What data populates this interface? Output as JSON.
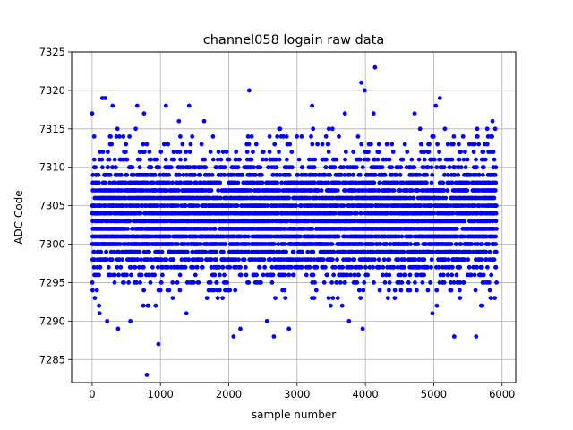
{
  "chart_data": {
    "type": "scatter",
    "title": "channel058 logain raw data",
    "xlabel": "sample number",
    "ylabel": "ADC Code",
    "xlim": [
      -300,
      6200
    ],
    "ylim": [
      7282,
      7325
    ],
    "x_ticks": [
      0,
      1000,
      2000,
      3000,
      4000,
      5000,
      6000
    ],
    "y_ticks": [
      7285,
      7290,
      7295,
      7300,
      7305,
      7310,
      7315,
      7320,
      7325
    ],
    "x_tick_labels": [
      "0",
      "1000",
      "2000",
      "3000",
      "4000",
      "5000",
      "6000"
    ],
    "y_tick_labels": [
      "7285",
      "7290",
      "7295",
      "7300",
      "7305",
      "7310",
      "7315",
      "7320",
      "7325"
    ],
    "grid": true,
    "marker_color": "#0000ff",
    "n_samples": 5920,
    "dense_band": [
      7293,
      7314
    ],
    "outliers": [
      {
        "x": 0,
        "y": 7317
      },
      {
        "x": 40,
        "y": 7293
      },
      {
        "x": 110,
        "y": 7291
      },
      {
        "x": 150,
        "y": 7319
      },
      {
        "x": 190,
        "y": 7319
      },
      {
        "x": 220,
        "y": 7290
      },
      {
        "x": 300,
        "y": 7318
      },
      {
        "x": 380,
        "y": 7289
      },
      {
        "x": 560,
        "y": 7290
      },
      {
        "x": 660,
        "y": 7318
      },
      {
        "x": 760,
        "y": 7317
      },
      {
        "x": 800,
        "y": 7283
      },
      {
        "x": 930,
        "y": 7292
      },
      {
        "x": 970,
        "y": 7287
      },
      {
        "x": 1080,
        "y": 7318
      },
      {
        "x": 1270,
        "y": 7316
      },
      {
        "x": 1380,
        "y": 7291
      },
      {
        "x": 1420,
        "y": 7318
      },
      {
        "x": 1640,
        "y": 7316
      },
      {
        "x": 2070,
        "y": 7288
      },
      {
        "x": 2170,
        "y": 7289
      },
      {
        "x": 2300,
        "y": 7320
      },
      {
        "x": 2560,
        "y": 7290
      },
      {
        "x": 2660,
        "y": 7288
      },
      {
        "x": 2880,
        "y": 7289
      },
      {
        "x": 3220,
        "y": 7318
      },
      {
        "x": 3700,
        "y": 7317
      },
      {
        "x": 3760,
        "y": 7290
      },
      {
        "x": 3940,
        "y": 7321
      },
      {
        "x": 3960,
        "y": 7289
      },
      {
        "x": 3990,
        "y": 7320
      },
      {
        "x": 4140,
        "y": 7323
      },
      {
        "x": 4120,
        "y": 7317
      },
      {
        "x": 4720,
        "y": 7317
      },
      {
        "x": 4980,
        "y": 7291
      },
      {
        "x": 5030,
        "y": 7318
      },
      {
        "x": 5090,
        "y": 7319
      },
      {
        "x": 5300,
        "y": 7288
      },
      {
        "x": 5620,
        "y": 7288
      },
      {
        "x": 5860,
        "y": 7316
      }
    ]
  }
}
